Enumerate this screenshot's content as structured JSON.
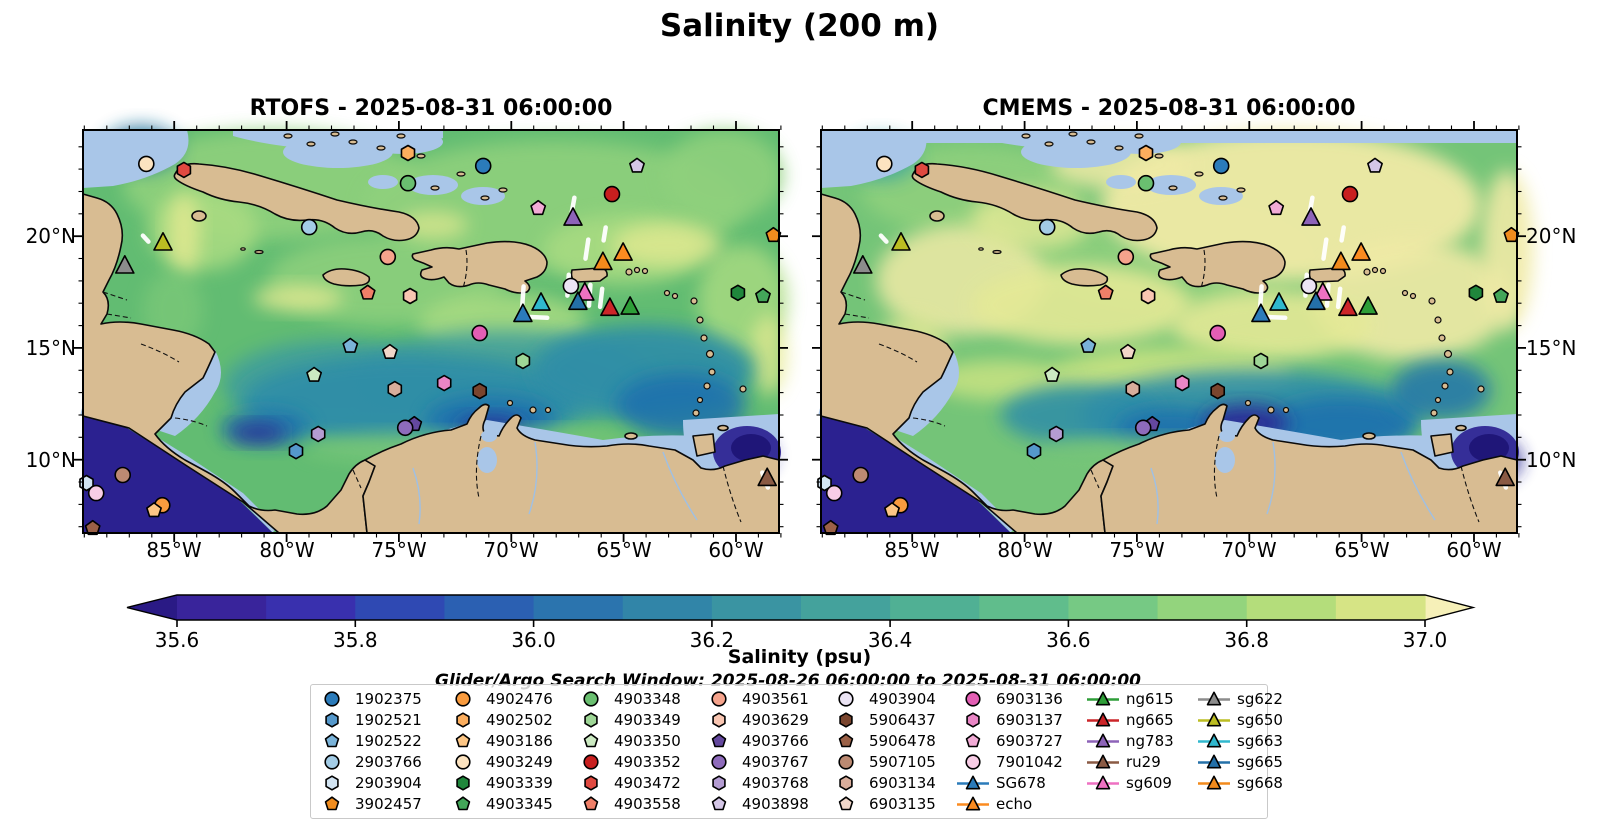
{
  "figure": {
    "title": "Salinity (200 m)",
    "colorbar_label": "Salinity (psu)",
    "legend_title": "Glider/Argo Search Window: 2025-08-26 06:00:00 to 2025-08-31 06:00:00"
  },
  "panels": [
    {
      "id": "rtofs",
      "title": "RTOFS - 2025-08-31 06:00:00",
      "lat_label_side": "left"
    },
    {
      "id": "cmems",
      "title": "CMEMS - 2025-08-31 06:00:00",
      "lat_label_side": "right"
    }
  ],
  "axes": {
    "lon_labels": [
      "85°W",
      "80°W",
      "75°W",
      "70°W",
      "65°W",
      "60°W"
    ],
    "lon_values": [
      85,
      80,
      75,
      70,
      65,
      60
    ],
    "lat_labels": [
      "20°N",
      "15°N",
      "10°N"
    ],
    "lat_values": [
      20,
      15,
      10
    ],
    "lon_range_w": [
      89.1,
      58.0
    ],
    "lat_range_n": [
      6.7,
      24.75
    ]
  },
  "colorbar": {
    "tick_labels": [
      "35.6",
      "35.8",
      "36.0",
      "36.2",
      "36.4",
      "36.6",
      "36.8",
      "37.0"
    ],
    "vmin": 35.6,
    "vmax": 37.0,
    "segment_step": 0.1,
    "segment_colors": [
      "#39249b",
      "#3930ae",
      "#2f49b3",
      "#2b60b2",
      "#2b74ae",
      "#3185a8",
      "#3a94a2",
      "#44a29c",
      "#50b094",
      "#60bd8c",
      "#76c984",
      "#93d47d",
      "#b4dd7b",
      "#d6e485"
    ],
    "under_color": "#2a1a85",
    "over_color": "#f6f0b8"
  },
  "legend": {
    "columns": [
      [
        {
          "label": "1902375",
          "shape": "circle",
          "color": "#2b7bba"
        },
        {
          "label": "1902521",
          "shape": "hexagon",
          "color": "#5598cb"
        },
        {
          "label": "1902522",
          "shape": "pentagon",
          "color": "#7ab3d9"
        },
        {
          "label": "2903766",
          "shape": "circle",
          "color": "#a3cce6"
        },
        {
          "label": "2903904",
          "shape": "hexagon",
          "color": "#d2e4f2"
        },
        {
          "label": "3902457",
          "shape": "pentagon",
          "color": "#f08c1e"
        }
      ],
      [
        {
          "label": "4902476",
          "shape": "circle",
          "color": "#f99b3e"
        },
        {
          "label": "4902502",
          "shape": "hexagon",
          "color": "#fcae5e"
        },
        {
          "label": "4903186",
          "shape": "pentagon",
          "color": "#fdc685"
        },
        {
          "label": "4903249",
          "shape": "circle",
          "color": "#fce3c0"
        },
        {
          "label": "4903339",
          "shape": "hexagon",
          "color": "#20873c"
        },
        {
          "label": "4903345",
          "shape": "pentagon",
          "color": "#43a659"
        }
      ],
      [
        {
          "label": "4903348",
          "shape": "circle",
          "color": "#6abf70"
        },
        {
          "label": "4903349",
          "shape": "hexagon",
          "color": "#9ed696"
        },
        {
          "label": "4903350",
          "shape": "pentagon",
          "color": "#cceac2"
        },
        {
          "label": "4903352",
          "shape": "circle",
          "color": "#c81f1f"
        },
        {
          "label": "4903472",
          "shape": "hexagon",
          "color": "#e04940"
        },
        {
          "label": "4903558",
          "shape": "pentagon",
          "color": "#ef7f68"
        }
      ],
      [
        {
          "label": "4903561",
          "shape": "circle",
          "color": "#f5a38c"
        },
        {
          "label": "4903629",
          "shape": "hexagon",
          "color": "#f9c6b2"
        },
        {
          "label": "4903766",
          "shape": "pentagon",
          "color": "#64489e"
        },
        {
          "label": "4903767",
          "shape": "circle",
          "color": "#8e6bbb"
        },
        {
          "label": "4903768",
          "shape": "hexagon",
          "color": "#b49cd2"
        },
        {
          "label": "4903898",
          "shape": "pentagon",
          "color": "#d4c6e6"
        }
      ],
      [
        {
          "label": "4903904",
          "shape": "circle",
          "color": "#ebe4f4"
        },
        {
          "label": "5906437",
          "shape": "hexagon",
          "color": "#7a452e"
        },
        {
          "label": "5906478",
          "shape": "pentagon",
          "color": "#9b6147"
        },
        {
          "label": "5907105",
          "shape": "circle",
          "color": "#bc8a72"
        },
        {
          "label": "6903134",
          "shape": "hexagon",
          "color": "#d8ad9b"
        },
        {
          "label": "6903135",
          "shape": "pentagon",
          "color": "#f2d7c9"
        }
      ],
      [
        {
          "label": "6903136",
          "shape": "circle",
          "color": "#e35eb4"
        },
        {
          "label": "6903137",
          "shape": "hexagon",
          "color": "#ea86c6"
        },
        {
          "label": "6903727",
          "shape": "pentagon",
          "color": "#f2abd6"
        },
        {
          "label": "7901042",
          "shape": "circle",
          "color": "#f8cde6"
        },
        {
          "label": "SG678",
          "shape": "glider",
          "color": "#2b7bba"
        },
        {
          "label": "echo",
          "shape": "glider",
          "color": "#fb8b20"
        }
      ],
      [
        {
          "label": "ng615",
          "shape": "glider",
          "color": "#2e9e38"
        },
        {
          "label": "ng665",
          "shape": "glider",
          "color": "#cc2529"
        },
        {
          "label": "ng783",
          "shape": "glider",
          "color": "#8d63b8"
        },
        {
          "label": "ru29",
          "shape": "glider",
          "color": "#8a5a44"
        },
        {
          "label": "sg609",
          "shape": "glider",
          "color": "#ee71c2"
        }
      ],
      [
        {
          "label": "sg622",
          "shape": "glider",
          "color": "#8c8c8c"
        },
        {
          "label": "sg650",
          "shape": "glider",
          "color": "#bcbd22"
        },
        {
          "label": "sg663",
          "shape": "glider",
          "color": "#30b8ce"
        },
        {
          "label": "sg665",
          "shape": "glider",
          "color": "#2470a8"
        },
        {
          "label": "sg668",
          "shape": "glider",
          "color": "#f28a1c"
        }
      ]
    ]
  },
  "markers": [
    {
      "id": "4903249",
      "x": 9.1,
      "y": 8.4
    },
    {
      "id": "4903472",
      "x": 14.5,
      "y": 9.9
    },
    {
      "id": "4902502",
      "x": 46.7,
      "y": 5.7
    },
    {
      "id": "1902375",
      "x": 57.5,
      "y": 8.9
    },
    {
      "id": "4903348",
      "x": 46.7,
      "y": 13.2
    },
    {
      "id": "4903898",
      "x": 79.6,
      "y": 8.9
    },
    {
      "id": "4903352",
      "x": 76.0,
      "y": 15.9
    },
    {
      "id": "6903727",
      "x": 65.4,
      "y": 19.4
    },
    {
      "id": "2903766",
      "x": 32.5,
      "y": 24.1
    },
    {
      "id": "3902457",
      "x": 99.2,
      "y": 26.1
    },
    {
      "id": "4903561",
      "x": 43.8,
      "y": 31.5
    },
    {
      "id": "4903904",
      "x": 70.1,
      "y": 38.7
    },
    {
      "id": "4903558",
      "x": 40.9,
      "y": 40.4
    },
    {
      "id": "4903629",
      "x": 47.0,
      "y": 41.2
    },
    {
      "id": "4903339",
      "x": 94.1,
      "y": 40.4
    },
    {
      "id": "4903345",
      "x": 97.7,
      "y": 41.2
    },
    {
      "id": "6903136",
      "x": 57.0,
      "y": 50.4
    },
    {
      "id": "1902522",
      "x": 38.4,
      "y": 53.6
    },
    {
      "id": "6903135",
      "x": 44.1,
      "y": 55.1
    },
    {
      "id": "4903349",
      "x": 63.2,
      "y": 57.3
    },
    {
      "id": "4903350",
      "x": 33.2,
      "y": 60.8
    },
    {
      "id": "6903137",
      "x": 51.9,
      "y": 62.8
    },
    {
      "id": "6903134",
      "x": 44.8,
      "y": 64.3
    },
    {
      "id": "5906437",
      "x": 57.0,
      "y": 64.8
    },
    {
      "id": "4903766",
      "x": 47.6,
      "y": 73.0
    },
    {
      "id": "4903767",
      "x": 46.3,
      "y": 73.9
    },
    {
      "id": "4903768",
      "x": 33.8,
      "y": 75.4
    },
    {
      "id": "1902521",
      "x": 30.6,
      "y": 79.7
    },
    {
      "id": "2903904",
      "x": 0.5,
      "y": 87.6
    },
    {
      "id": "5907105",
      "x": 5.7,
      "y": 85.6
    },
    {
      "id": "7901042",
      "x": 1.9,
      "y": 90.1
    },
    {
      "id": "4902476",
      "x": 11.4,
      "y": 93.1
    },
    {
      "id": "4903186",
      "x": 10.2,
      "y": 94.4
    },
    {
      "id": "5906478",
      "x": 1.4,
      "y": 98.8
    },
    {
      "id": "sg650",
      "x": 11.5,
      "y": 28.0
    },
    {
      "id": "sg622",
      "x": 6.0,
      "y": 33.7
    },
    {
      "id": "ng783",
      "x": 70.4,
      "y": 21.8
    },
    {
      "id": "sg668",
      "x": 74.7,
      "y": 32.8
    },
    {
      "id": "echo",
      "x": 77.6,
      "y": 30.5
    },
    {
      "id": "sg609",
      "x": 72.1,
      "y": 40.4
    },
    {
      "id": "sg665",
      "x": 71.1,
      "y": 42.7
    },
    {
      "id": "sg663",
      "x": 65.8,
      "y": 42.9
    },
    {
      "id": "SG678",
      "x": 63.2,
      "y": 45.7
    },
    {
      "id": "ng665",
      "x": 75.7,
      "y": 44.2
    },
    {
      "id": "ng615",
      "x": 78.6,
      "y": 43.9
    },
    {
      "id": "ru29",
      "x": 98.3,
      "y": 86.4
    }
  ],
  "tracks": [
    [
      [
        8.6,
        26.2
      ],
      [
        9.4,
        27.7
      ]
    ],
    [
      [
        70.6,
        16.8
      ],
      [
        70.2,
        20.6
      ]
    ],
    [
      [
        72.6,
        27.2
      ],
      [
        72.2,
        31.9
      ]
    ],
    [
      [
        75.1,
        24.2
      ],
      [
        74.8,
        27.4
      ]
    ],
    [
      [
        63.3,
        38.8
      ],
      [
        63.0,
        46.3
      ],
      [
        66.7,
        46.6
      ]
    ],
    [
      [
        69.8,
        35.9
      ],
      [
        69.6,
        41.1
      ]
    ],
    [
      [
        72.9,
        38.4
      ],
      [
        72.7,
        43.6
      ]
    ],
    [
      [
        74.6,
        39.4
      ],
      [
        74.3,
        43.9
      ]
    ],
    [
      [
        97.6,
        85.0
      ],
      [
        98.4,
        88.7
      ]
    ]
  ],
  "chart_data": {
    "type": "heatmap",
    "title": "Salinity (200 m)",
    "panels": [
      {
        "title": "RTOFS - 2025-08-31 06:00:00"
      },
      {
        "title": "CMEMS - 2025-08-31 06:00:00"
      }
    ],
    "x_axis": {
      "tick_labels": [
        "85°W",
        "80°W",
        "75°W",
        "70°W",
        "65°W",
        "60°W"
      ],
      "range_deg_west": [
        89.1,
        58.0
      ]
    },
    "y_axis": {
      "tick_labels": [
        "20°N",
        "15°N",
        "10°N"
      ],
      "range_deg_north": [
        6.7,
        24.75
      ]
    },
    "colorbar": {
      "label": "Salinity (psu)",
      "ticks": [
        35.6,
        35.8,
        36.0,
        36.2,
        36.4,
        36.6,
        36.8,
        37.0
      ],
      "range": [
        35.6,
        37.0
      ],
      "extend": "both"
    },
    "legend_note": "Glider/Argo Search Window: 2025-08-26 06:00:00 to 2025-08-31 06:00:00",
    "argo_floats": [
      "1902375",
      "1902521",
      "1902522",
      "2903766",
      "2903904",
      "3902457",
      "4902476",
      "4902502",
      "4903186",
      "4903249",
      "4903339",
      "4903345",
      "4903348",
      "4903349",
      "4903350",
      "4903352",
      "4903472",
      "4903558",
      "4903561",
      "4903629",
      "4903766",
      "4903767",
      "4903768",
      "4903898",
      "4903904",
      "5906437",
      "5906478",
      "5907105",
      "6903134",
      "6903135",
      "6903136",
      "6903137",
      "6903727",
      "7901042"
    ],
    "gliders": [
      "SG678",
      "echo",
      "ng615",
      "ng665",
      "ng783",
      "ru29",
      "sg609",
      "sg622",
      "sg650",
      "sg663",
      "sg665",
      "sg668"
    ]
  }
}
